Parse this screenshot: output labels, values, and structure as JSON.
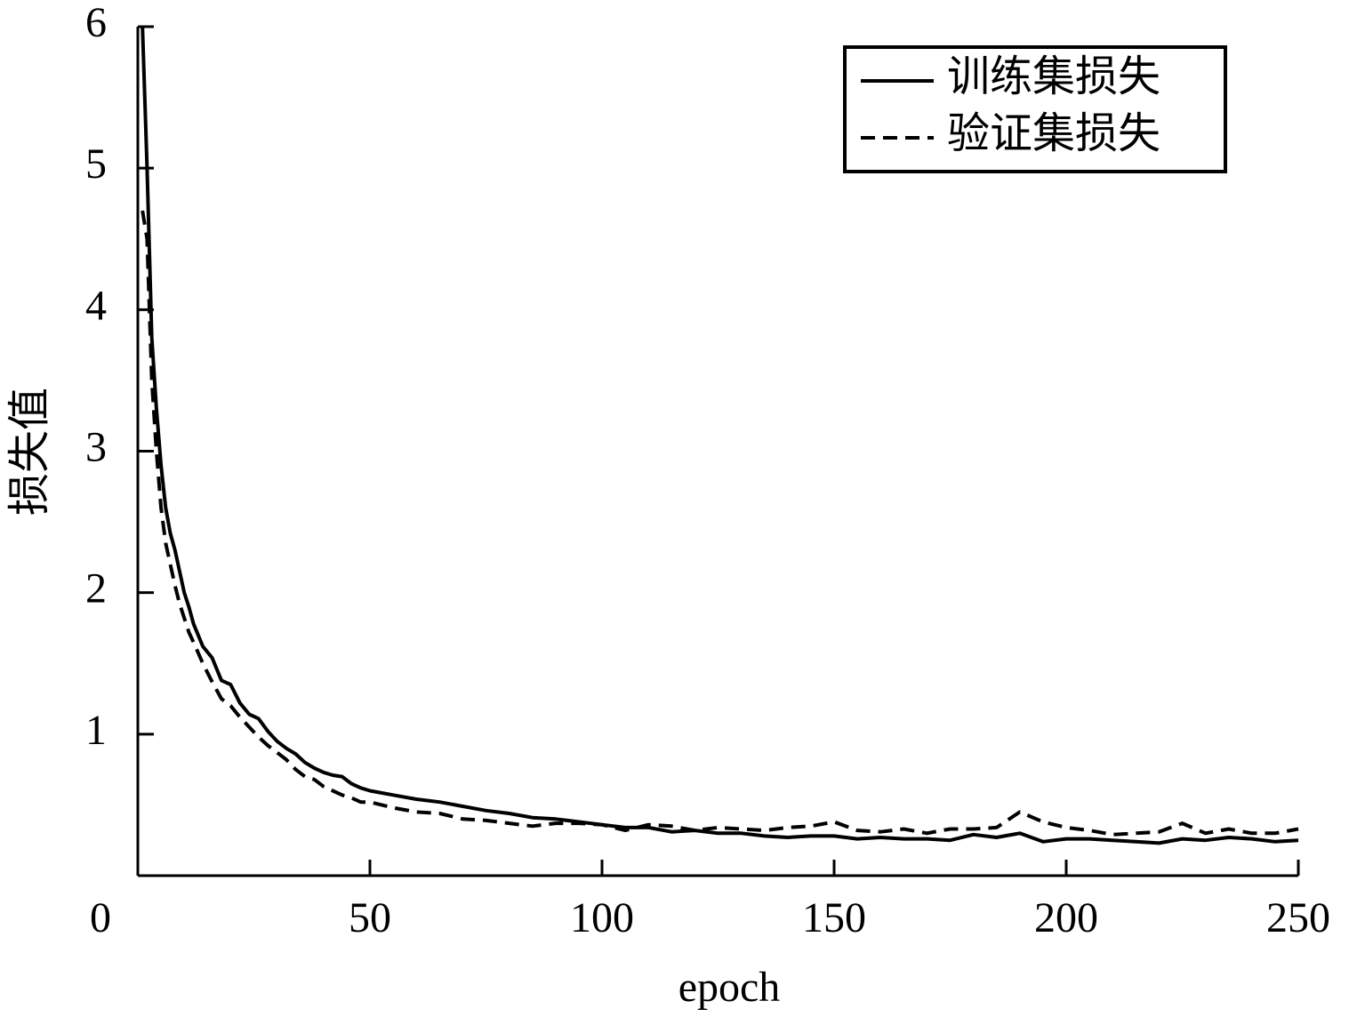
{
  "chart_data": {
    "type": "line",
    "x_label": "epoch",
    "y_label": "损失值",
    "x": [
      1,
      2,
      3,
      4,
      5,
      6,
      7,
      8,
      9,
      10,
      11,
      12,
      14,
      16,
      18,
      20,
      22,
      24,
      26,
      28,
      30,
      32,
      34,
      36,
      38,
      40,
      42,
      44,
      46,
      48,
      50,
      55,
      60,
      65,
      70,
      75,
      80,
      85,
      90,
      95,
      100,
      105,
      110,
      115,
      120,
      125,
      130,
      135,
      140,
      145,
      150,
      155,
      160,
      165,
      170,
      175,
      180,
      185,
      190,
      195,
      200,
      205,
      210,
      215,
      220,
      225,
      230,
      235,
      240,
      245,
      250
    ],
    "series": [
      {
        "name": "训练集损失",
        "color": "#000000",
        "dash": "solid",
        "values": [
          6.0,
          5.0,
          3.8,
          3.3,
          2.9,
          2.6,
          2.42,
          2.3,
          2.15,
          2.0,
          1.9,
          1.78,
          1.62,
          1.54,
          1.38,
          1.35,
          1.22,
          1.14,
          1.11,
          1.02,
          0.95,
          0.9,
          0.86,
          0.8,
          0.76,
          0.73,
          0.71,
          0.7,
          0.65,
          0.62,
          0.6,
          0.57,
          0.54,
          0.52,
          0.49,
          0.46,
          0.44,
          0.41,
          0.4,
          0.38,
          0.36,
          0.34,
          0.34,
          0.31,
          0.32,
          0.3,
          0.3,
          0.28,
          0.27,
          0.28,
          0.28,
          0.26,
          0.27,
          0.26,
          0.26,
          0.25,
          0.29,
          0.27,
          0.3,
          0.24,
          0.26,
          0.26,
          0.25,
          0.24,
          0.23,
          0.26,
          0.25,
          0.27,
          0.26,
          0.24,
          0.25
        ]
      },
      {
        "name": "验证集损失",
        "color": "#000000",
        "dash": "dashed",
        "values": [
          4.7,
          4.5,
          3.5,
          3.0,
          2.6,
          2.35,
          2.2,
          2.05,
          1.92,
          1.82,
          1.72,
          1.65,
          1.5,
          1.37,
          1.25,
          1.2,
          1.12,
          1.05,
          0.98,
          0.92,
          0.87,
          0.82,
          0.75,
          0.7,
          0.68,
          0.63,
          0.6,
          0.57,
          0.55,
          0.52,
          0.52,
          0.48,
          0.45,
          0.44,
          0.4,
          0.39,
          0.37,
          0.35,
          0.37,
          0.37,
          0.36,
          0.32,
          0.36,
          0.35,
          0.32,
          0.34,
          0.33,
          0.32,
          0.34,
          0.35,
          0.38,
          0.32,
          0.31,
          0.33,
          0.3,
          0.33,
          0.33,
          0.34,
          0.45,
          0.38,
          0.34,
          0.32,
          0.29,
          0.3,
          0.31,
          0.37,
          0.3,
          0.33,
          0.3,
          0.3,
          0.33
        ]
      }
    ],
    "xlim": [
      0,
      250
    ],
    "ylim": [
      0,
      6
    ],
    "xticks": [
      0,
      50,
      100,
      150,
      200,
      250
    ],
    "yticks": [
      1,
      2,
      3,
      4,
      5,
      6
    ],
    "legend": "upper-right",
    "grid": false
  }
}
